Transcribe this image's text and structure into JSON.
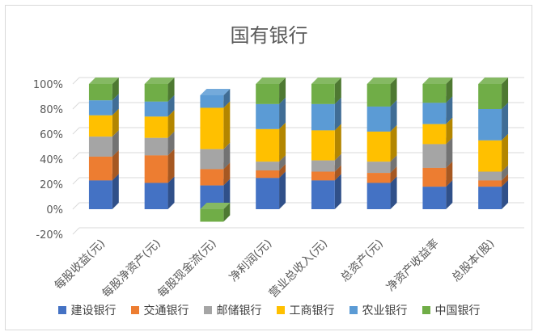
{
  "chart_data": {
    "type": "bar",
    "stacked": true,
    "percent_stacked": true,
    "title": "国有银行",
    "xlabel": "",
    "ylabel": "",
    "ylim": [
      -0.2,
      1.0
    ],
    "y_ticks": [
      "-20%",
      "0%",
      "20%",
      "40%",
      "60%",
      "80%",
      "100%"
    ],
    "grid": true,
    "legend_position": "bottom",
    "categories": [
      "每股收益(元)",
      "每股净资产(元)",
      "每股现金流(元)",
      "净利润(元)",
      "营业总收入(元)",
      "总资产(元)",
      "净资产收益率",
      "总股本(股)"
    ],
    "series": [
      {
        "name": "建设银行",
        "color": "#4472C4",
        "values": [
          0.23,
          0.21,
          0.19,
          0.25,
          0.23,
          0.21,
          0.18,
          0.18
        ]
      },
      {
        "name": "交通银行",
        "color": "#ED7D31",
        "values": [
          0.19,
          0.22,
          0.13,
          0.06,
          0.07,
          0.08,
          0.15,
          0.05
        ]
      },
      {
        "name": "邮储银行",
        "color": "#A5A5A5",
        "values": [
          0.16,
          0.14,
          0.16,
          0.07,
          0.09,
          0.09,
          0.19,
          0.07
        ]
      },
      {
        "name": "工商银行",
        "color": "#FFC000",
        "values": [
          0.17,
          0.17,
          0.33,
          0.26,
          0.24,
          0.24,
          0.16,
          0.25
        ]
      },
      {
        "name": "农业银行",
        "color": "#5B9BD5",
        "values": [
          0.12,
          0.12,
          0.1,
          0.2,
          0.21,
          0.2,
          0.17,
          0.25
        ]
      },
      {
        "name": "中国银行",
        "color": "#70AD47",
        "values": [
          0.13,
          0.14,
          -0.1,
          0.16,
          0.16,
          0.18,
          0.15,
          0.2
        ]
      }
    ]
  }
}
